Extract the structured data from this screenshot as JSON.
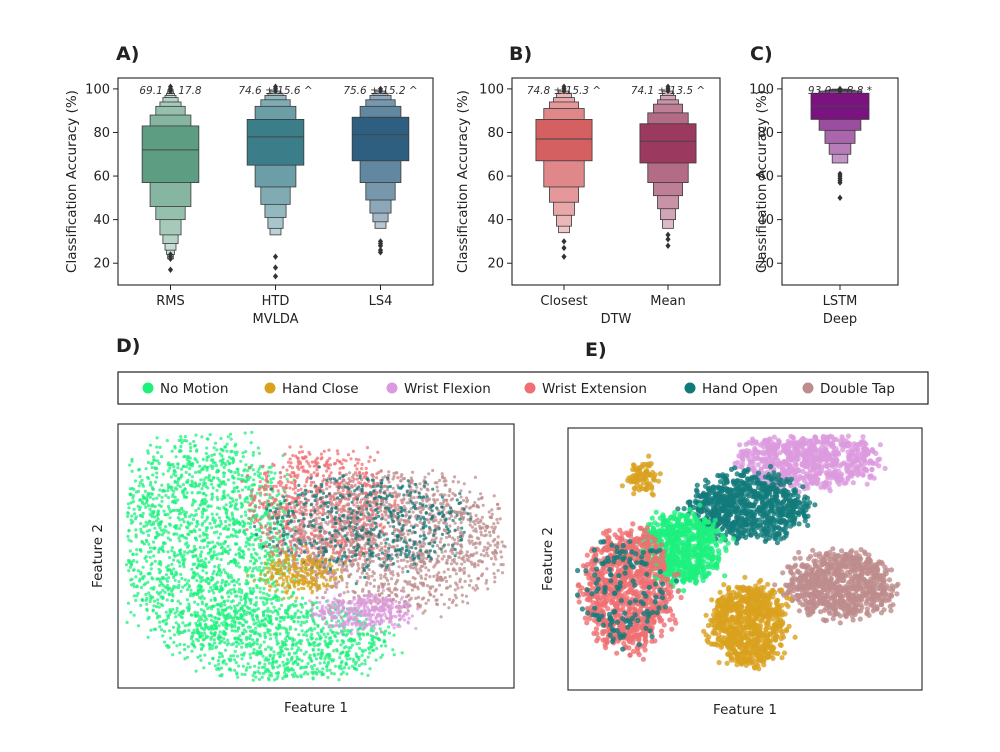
{
  "panel_labels": {
    "a": "A)",
    "b": "B)",
    "c": "C)",
    "d": "D)",
    "e": "E)"
  },
  "chart_data": [
    {
      "panel": "A)",
      "type": "boxen",
      "ylabel": "Classification Accuracy (%)",
      "ylim": [
        10,
        105
      ],
      "yticks": [
        20,
        40,
        60,
        80,
        100
      ],
      "group_label": "MVLDA",
      "categories": [
        "RMS",
        "HTD",
        "LS4"
      ],
      "annotations": [
        "69.1 ± 17.8",
        "74.6 ± 15.6 ^",
        "75.6 ± 15.2 ^"
      ],
      "colors": [
        "#5d9e82",
        "#3b7e8a",
        "#2e5f80"
      ],
      "medians": [
        72,
        78,
        79
      ],
      "boxes": [
        [
          [
            57,
            83
          ],
          [
            46,
            88
          ],
          [
            40,
            92
          ],
          [
            33,
            94
          ],
          [
            29,
            96
          ],
          [
            26,
            97
          ],
          [
            24,
            98
          ],
          [
            22,
            99
          ]
        ],
        [
          [
            65,
            86
          ],
          [
            55,
            92
          ],
          [
            47,
            95
          ],
          [
            41,
            97
          ],
          [
            36,
            98
          ],
          [
            33,
            99
          ]
        ],
        [
          [
            67,
            87
          ],
          [
            57,
            92
          ],
          [
            49,
            95
          ],
          [
            43,
            97
          ],
          [
            39,
            98
          ],
          [
            36,
            99
          ]
        ]
      ],
      "outliers": [
        [
          17,
          22,
          23,
          24,
          99,
          100,
          101
        ],
        [
          14,
          18,
          23,
          99,
          100,
          101
        ],
        [
          25,
          26,
          28,
          29,
          30,
          99,
          100
        ]
      ]
    },
    {
      "panel": "B)",
      "type": "boxen",
      "ylabel": "Classification Accuracy (%)",
      "ylim": [
        10,
        105
      ],
      "yticks": [
        20,
        40,
        60,
        80,
        100
      ],
      "group_label": "DTW",
      "categories": [
        "Closest",
        "Mean"
      ],
      "annotations": [
        "74.8 ± 15.3 ^",
        "74.1 ± 13.5 ^"
      ],
      "colors": [
        "#d56062",
        "#9b3a5e"
      ],
      "medians": [
        77,
        76
      ],
      "boxes": [
        [
          [
            67,
            86
          ],
          [
            55,
            91
          ],
          [
            48,
            94
          ],
          [
            42,
            96
          ],
          [
            37,
            98
          ],
          [
            34,
            99
          ]
        ],
        [
          [
            66,
            84
          ],
          [
            57,
            89
          ],
          [
            51,
            93
          ],
          [
            45,
            95
          ],
          [
            40,
            97
          ],
          [
            36,
            99
          ]
        ]
      ],
      "outliers": [
        [
          23,
          27,
          30,
          99,
          100,
          101
        ],
        [
          28,
          31,
          33,
          99,
          100,
          101
        ]
      ]
    },
    {
      "panel": "C)",
      "type": "boxen",
      "ylabel": "Classification Accuracy (%)",
      "ylim": [
        10,
        105
      ],
      "yticks": [
        20,
        40,
        60,
        80,
        100
      ],
      "group_label": "Deep",
      "categories": [
        "LSTM"
      ],
      "annotations": [
        "93.0 ± 8.8 *"
      ],
      "colors": [
        "#7a1380"
      ],
      "medians": [
        92
      ],
      "boxes": [
        [
          [
            86,
            98
          ],
          [
            81,
            99
          ],
          [
            75,
            99.4
          ],
          [
            70,
            99.7
          ],
          [
            66,
            99.9
          ]
        ]
      ],
      "outliers": [
        [
          50,
          57,
          58,
          59,
          60,
          61,
          99,
          100
        ]
      ]
    },
    {
      "panel": "D)",
      "type": "scatter",
      "xlabel": "Feature 1",
      "ylabel": "Feature 2",
      "clusters": [
        {
          "class": "No Motion",
          "cx": 0.22,
          "cy": 0.45,
          "rx": 0.22,
          "ry": 0.4,
          "n": 1800
        },
        {
          "class": "No Motion",
          "cx": 0.42,
          "cy": 0.82,
          "rx": 0.26,
          "ry": 0.16,
          "n": 900
        },
        {
          "class": "Wrist Extension",
          "cx": 0.52,
          "cy": 0.32,
          "rx": 0.18,
          "ry": 0.22,
          "n": 800
        },
        {
          "class": "Double Tap",
          "cx": 0.7,
          "cy": 0.45,
          "rx": 0.28,
          "ry": 0.26,
          "n": 1500
        },
        {
          "class": "Hand Open",
          "cx": 0.62,
          "cy": 0.38,
          "rx": 0.25,
          "ry": 0.18,
          "n": 500
        },
        {
          "class": "Hand Close",
          "cx": 0.46,
          "cy": 0.57,
          "rx": 0.09,
          "ry": 0.07,
          "n": 250
        },
        {
          "class": "Wrist Flexion",
          "cx": 0.62,
          "cy": 0.71,
          "rx": 0.12,
          "ry": 0.06,
          "n": 350
        }
      ]
    },
    {
      "panel": "E)",
      "type": "scatter",
      "xlabel": "Feature 1",
      "ylabel": "Feature 2",
      "clusters": [
        {
          "class": "Wrist Flexion",
          "cx": 0.68,
          "cy": 0.12,
          "rx": 0.19,
          "ry": 0.1,
          "n": 700
        },
        {
          "class": "Hand Open",
          "cx": 0.51,
          "cy": 0.3,
          "rx": 0.16,
          "ry": 0.12,
          "n": 800
        },
        {
          "class": "No Motion",
          "cx": 0.32,
          "cy": 0.46,
          "rx": 0.11,
          "ry": 0.13,
          "n": 700
        },
        {
          "class": "Double Tap",
          "cx": 0.77,
          "cy": 0.6,
          "rx": 0.15,
          "ry": 0.12,
          "n": 800
        },
        {
          "class": "Hand Close",
          "cx": 0.51,
          "cy": 0.75,
          "rx": 0.1,
          "ry": 0.15,
          "n": 800
        },
        {
          "class": "Wrist Extension",
          "cx": 0.17,
          "cy": 0.62,
          "rx": 0.12,
          "ry": 0.22,
          "n": 900
        },
        {
          "class": "Hand Close",
          "cx": 0.21,
          "cy": 0.19,
          "rx": 0.04,
          "ry": 0.05,
          "n": 80
        },
        {
          "class": "Hand Open",
          "cx": 0.16,
          "cy": 0.62,
          "rx": 0.12,
          "ry": 0.2,
          "n": 140
        }
      ]
    }
  ],
  "legend": {
    "items": [
      {
        "label": "No Motion",
        "color": "#1ef07e"
      },
      {
        "label": "Hand Close",
        "color": "#d9a11e"
      },
      {
        "label": "Wrist Flexion",
        "color": "#dc9ade"
      },
      {
        "label": "Wrist Extension",
        "color": "#ef6f72"
      },
      {
        "label": "Hand Open",
        "color": "#137a7a"
      },
      {
        "label": "Double Tap",
        "color": "#be8c8c"
      }
    ]
  }
}
